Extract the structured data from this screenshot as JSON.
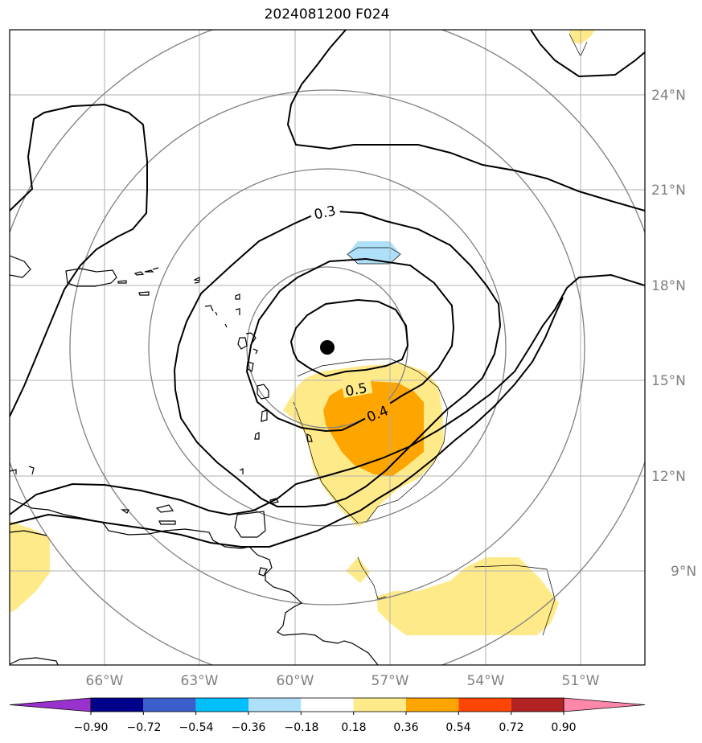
{
  "title": "2024081200 F024",
  "map": {
    "lon_range": [
      -69.0,
      -49.0
    ],
    "lat_range": [
      6.0,
      26.0
    ],
    "lon_ticks": [
      "66°W",
      "63°W",
      "60°W",
      "57°W",
      "54°W",
      "51°W"
    ],
    "lat_ticks": [
      "24°N",
      "21°N",
      "18°N",
      "15°N",
      "12°N",
      "9°N"
    ],
    "grid": true,
    "center_marker": {
      "lon": -59.0,
      "lat": 16.0
    },
    "contour_labels": [
      "0.3",
      "0.4",
      "0.5"
    ],
    "colors": {
      "contour": "#000000",
      "range_ring": "#808080",
      "gridline": "#b0b0b0",
      "light_yellow": "#ffea8a",
      "orange": "#ffa500",
      "light_blue": "#aee0fa"
    }
  },
  "colorbar": {
    "tick_labels": [
      "−0.90",
      "−0.72",
      "−0.54",
      "−0.36",
      "−0.18",
      "0.18",
      "0.36",
      "0.54",
      "0.72",
      "0.90"
    ],
    "bins": [
      {
        "range": "< -0.90",
        "color": "#9932cc"
      },
      {
        "range": "-0.90 to -0.72",
        "color": "#00008b"
      },
      {
        "range": "-0.72 to -0.54",
        "color": "#3a5fcd"
      },
      {
        "range": "-0.54 to -0.36",
        "color": "#00bfff"
      },
      {
        "range": "-0.36 to -0.18",
        "color": "#aee0fa"
      },
      {
        "range": "-0.18 to 0.18",
        "color": "#ffffff"
      },
      {
        "range": "0.18 to 0.36",
        "color": "#ffea8a"
      },
      {
        "range": "0.36 to 0.54",
        "color": "#ffa500"
      },
      {
        "range": "0.54 to 0.72",
        "color": "#ff4500"
      },
      {
        "range": "0.72 to 0.90",
        "color": "#b22222"
      },
      {
        "range": "> 0.90",
        "color": "#ff88aa"
      }
    ]
  }
}
